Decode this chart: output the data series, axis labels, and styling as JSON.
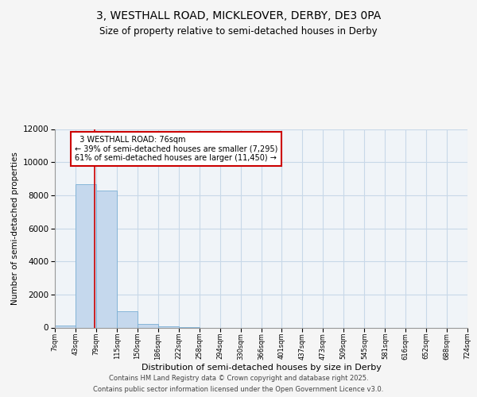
{
  "title1": "3, WESTHALL ROAD, MICKLEOVER, DERBY, DE3 0PA",
  "title2": "Size of property relative to semi-detached houses in Derby",
  "xlabel": "Distribution of semi-detached houses by size in Derby",
  "ylabel": "Number of semi-detached properties",
  "property_size": 76,
  "property_label": "3 WESTHALL ROAD: 76sqm",
  "pct_smaller": 39,
  "pct_larger": 61,
  "n_smaller": 7295,
  "n_larger": 11450,
  "bin_edges": [
    7,
    43,
    79,
    115,
    150,
    186,
    222,
    258,
    294,
    330,
    366,
    401,
    437,
    473,
    509,
    545,
    581,
    616,
    652,
    688,
    724
  ],
  "bin_labels": [
    "7sqm",
    "43sqm",
    "79sqm",
    "115sqm",
    "150sqm",
    "186sqm",
    "222sqm",
    "258sqm",
    "294sqm",
    "330sqm",
    "366sqm",
    "401sqm",
    "437sqm",
    "473sqm",
    "509sqm",
    "545sqm",
    "581sqm",
    "616sqm",
    "652sqm",
    "688sqm",
    "724sqm"
  ],
  "counts": [
    100,
    8650,
    8300,
    1000,
    200,
    50,
    10,
    0,
    0,
    0,
    0,
    0,
    0,
    0,
    0,
    0,
    0,
    0,
    0,
    0
  ],
  "bar_color": "#c5d8ed",
  "bar_edge_color": "#7aafd4",
  "line_color": "#cc0000",
  "ylim": [
    0,
    12000
  ],
  "yticks": [
    0,
    2000,
    4000,
    6000,
    8000,
    10000,
    12000
  ],
  "footer1": "Contains HM Land Registry data © Crown copyright and database right 2025.",
  "footer2": "Contains public sector information licensed under the Open Government Licence v3.0.",
  "background_color": "#f5f5f5",
  "plot_bg_color": "#f0f4f8",
  "grid_color": "#c8d8e8"
}
